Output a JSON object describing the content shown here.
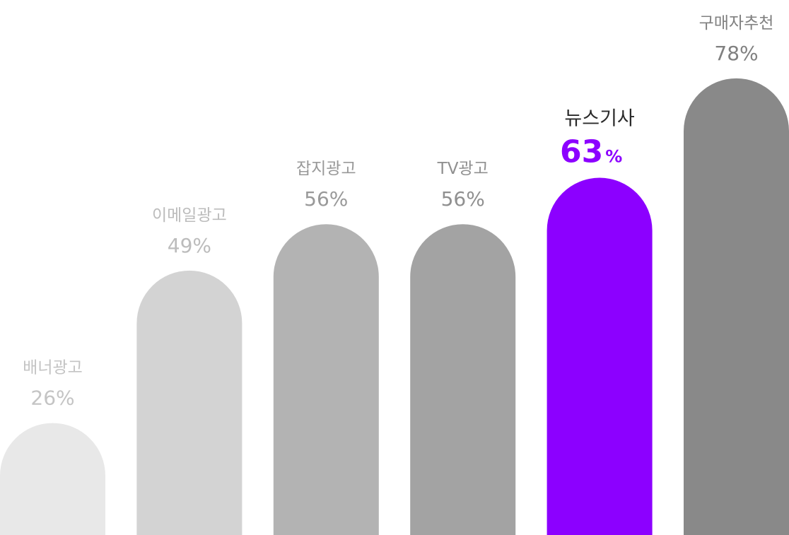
{
  "chart_data": {
    "type": "bar",
    "categories": [
      "배너광고",
      "이메일광고",
      "잡지광고",
      "TV광고",
      "뉴스기사",
      "구매자추천"
    ],
    "values": [
      26,
      49,
      56,
      56,
      63,
      78
    ],
    "value_labels": [
      "26%",
      "49%",
      "56%",
      "56%",
      "63%",
      "78%"
    ],
    "unit": "%",
    "highlight_index": 4,
    "colors": {
      "bars": [
        "#e8e8e8",
        "#d3d3d3",
        "#b3b3b3",
        "#a3a3a3",
        "#8c00ff",
        "#898989"
      ],
      "labels": [
        "#c4c4c4",
        "#bcbcbc",
        "#999999",
        "#909090",
        "#8c00ff",
        "#808080"
      ],
      "highlight_category_text": "#2a2a2a"
    },
    "bar_shape": "rounded-top",
    "grid": false,
    "legend": "none"
  }
}
